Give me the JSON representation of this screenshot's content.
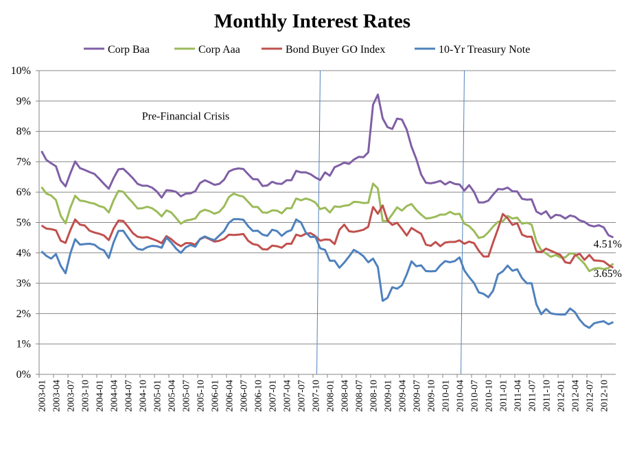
{
  "chart_data": {
    "type": "line",
    "title": "Monthly Interest Rates",
    "xlabel": "",
    "ylabel": "",
    "ylim": [
      0,
      10
    ],
    "yticks": [
      "0%",
      "1%",
      "2%",
      "3%",
      "4%",
      "5%",
      "6%",
      "7%",
      "8%",
      "9%",
      "10%"
    ],
    "grid": true,
    "legend_position": "top",
    "x_start": "2003-01",
    "x_end": "2012-12",
    "x_tick_labels": [
      "2003-01",
      "2003-04",
      "2003-07",
      "2003-10",
      "2004-01",
      "2004-04",
      "2004-07",
      "2004-10",
      "2005-01",
      "2005-04",
      "2005-07",
      "2005-10",
      "2006-01",
      "2006-04",
      "2006-07",
      "2006-10",
      "2007-01",
      "2007-04",
      "2007-07",
      "2007-10",
      "2008-01",
      "2008-04",
      "2008-07",
      "2008-10",
      "2009-01",
      "2009-04",
      "2009-07",
      "2009-10",
      "2010-01",
      "2010-04",
      "2010-07",
      "2010-10",
      "2011-01",
      "2011-04",
      "2011-07",
      "2011-10",
      "2012-01",
      "2012-04",
      "2012-07",
      "2012-10"
    ],
    "vertical_markers": [
      "2007-10",
      "2010-04"
    ],
    "annotations": [
      {
        "text": "Pre-Financial Crisis",
        "x": "2005-07",
        "y": 8.5
      }
    ],
    "end_labels": [
      "4.51%",
      "3.65%"
    ],
    "series": [
      {
        "name": "Corp Baa",
        "color": "#7F5FA5",
        "values": [
          7.35,
          7.06,
          6.95,
          6.85,
          6.38,
          6.19,
          6.62,
          7.01,
          6.79,
          6.73,
          6.66,
          6.6,
          6.44,
          6.27,
          6.11,
          6.46,
          6.75,
          6.77,
          6.62,
          6.46,
          6.27,
          6.21,
          6.21,
          6.15,
          6.02,
          5.82,
          6.06,
          6.05,
          6.01,
          5.86,
          5.95,
          5.96,
          6.03,
          6.3,
          6.39,
          6.32,
          6.24,
          6.27,
          6.41,
          6.68,
          6.75,
          6.78,
          6.76,
          6.59,
          6.43,
          6.42,
          6.2,
          6.22,
          6.34,
          6.28,
          6.27,
          6.39,
          6.39,
          6.7,
          6.65,
          6.65,
          6.59,
          6.48,
          6.4,
          6.65,
          6.54,
          6.82,
          6.89,
          6.97,
          6.93,
          7.07,
          7.16,
          7.15,
          7.31,
          8.88,
          9.21,
          8.43,
          8.14,
          8.08,
          8.42,
          8.39,
          8.06,
          7.5,
          7.09,
          6.58,
          6.31,
          6.29,
          6.32,
          6.37,
          6.25,
          6.34,
          6.27,
          6.25,
          6.05,
          6.23,
          6.01,
          5.66,
          5.66,
          5.72,
          5.92,
          6.1,
          6.09,
          6.15,
          6.03,
          6.02,
          5.78,
          5.75,
          5.76,
          5.36,
          5.27,
          5.37,
          5.14,
          5.25,
          5.23,
          5.13,
          5.23,
          5.19,
          5.07,
          5.02,
          4.91,
          4.87,
          4.91,
          4.84,
          4.58,
          4.51
        ]
      },
      {
        "name": "Corp Aaa",
        "color": "#9BBB59",
        "values": [
          6.17,
          5.95,
          5.89,
          5.74,
          5.22,
          4.97,
          5.49,
          5.88,
          5.72,
          5.7,
          5.65,
          5.62,
          5.54,
          5.5,
          5.33,
          5.73,
          6.04,
          6.01,
          5.82,
          5.65,
          5.46,
          5.47,
          5.52,
          5.47,
          5.36,
          5.2,
          5.4,
          5.33,
          5.15,
          4.96,
          5.06,
          5.09,
          5.13,
          5.35,
          5.42,
          5.37,
          5.29,
          5.35,
          5.53,
          5.84,
          5.95,
          5.89,
          5.85,
          5.68,
          5.51,
          5.51,
          5.33,
          5.32,
          5.4,
          5.39,
          5.3,
          5.47,
          5.47,
          5.79,
          5.73,
          5.79,
          5.74,
          5.66,
          5.44,
          5.49,
          5.33,
          5.53,
          5.51,
          5.55,
          5.57,
          5.68,
          5.67,
          5.64,
          5.65,
          6.28,
          6.12,
          5.05,
          5.05,
          5.27,
          5.5,
          5.39,
          5.54,
          5.61,
          5.41,
          5.26,
          5.13,
          5.15,
          5.19,
          5.26,
          5.26,
          5.35,
          5.27,
          5.29,
          4.96,
          4.88,
          4.72,
          4.49,
          4.53,
          4.68,
          4.87,
          5.02,
          5.04,
          5.22,
          5.13,
          5.16,
          4.96,
          4.99,
          4.93,
          4.37,
          4.09,
          3.98,
          3.87,
          3.93,
          3.85,
          3.85,
          3.99,
          3.96,
          3.8,
          3.64,
          3.4,
          3.48,
          3.5,
          3.47,
          3.5,
          3.65
        ]
      },
      {
        "name": "Bond Buyer GO Index",
        "color": "#C0504D",
        "values": [
          4.9,
          4.8,
          4.78,
          4.74,
          4.4,
          4.33,
          4.75,
          5.1,
          4.93,
          4.9,
          4.73,
          4.67,
          4.63,
          4.57,
          4.42,
          4.8,
          5.06,
          5.05,
          4.86,
          4.65,
          4.53,
          4.5,
          4.52,
          4.46,
          4.4,
          4.32,
          4.55,
          4.45,
          4.31,
          4.22,
          4.32,
          4.32,
          4.27,
          4.45,
          4.52,
          4.45,
          4.37,
          4.4,
          4.46,
          4.6,
          4.59,
          4.6,
          4.62,
          4.4,
          4.29,
          4.26,
          4.12,
          4.11,
          4.24,
          4.22,
          4.17,
          4.3,
          4.3,
          4.6,
          4.55,
          4.63,
          4.65,
          4.55,
          4.4,
          4.44,
          4.43,
          4.29,
          4.76,
          4.93,
          4.71,
          4.69,
          4.72,
          4.76,
          4.86,
          5.51,
          5.29,
          5.56,
          5.07,
          4.92,
          4.99,
          4.79,
          4.57,
          4.82,
          4.72,
          4.63,
          4.27,
          4.23,
          4.36,
          4.22,
          4.34,
          4.36,
          4.36,
          4.41,
          4.3,
          4.37,
          4.32,
          4.07,
          3.88,
          3.88,
          4.35,
          4.79,
          5.28,
          5.14,
          4.92,
          4.98,
          4.6,
          4.53,
          4.53,
          4.05,
          4.02,
          4.14,
          4.07,
          4.0,
          3.93,
          3.69,
          3.66,
          3.91,
          3.97,
          3.77,
          3.93,
          3.75,
          3.74,
          3.72,
          3.6,
          3.51
        ]
      },
      {
        "name": "10-Yr Treasury Note",
        "color": "#4F81BD",
        "values": [
          4.05,
          3.9,
          3.81,
          3.96,
          3.57,
          3.33,
          3.98,
          4.45,
          4.27,
          4.29,
          4.3,
          4.27,
          4.15,
          4.08,
          3.83,
          4.35,
          4.72,
          4.73,
          4.5,
          4.28,
          4.13,
          4.1,
          4.19,
          4.23,
          4.22,
          4.17,
          4.5,
          4.34,
          4.14,
          4.0,
          4.18,
          4.26,
          4.2,
          4.46,
          4.54,
          4.47,
          4.42,
          4.57,
          4.72,
          4.99,
          5.11,
          5.11,
          5.09,
          4.88,
          4.72,
          4.73,
          4.6,
          4.56,
          4.76,
          4.72,
          4.56,
          4.69,
          4.75,
          5.1,
          5.0,
          4.67,
          4.52,
          4.53,
          4.15,
          4.1,
          3.74,
          3.74,
          3.51,
          3.68,
          3.88,
          4.1,
          4.01,
          3.89,
          3.69,
          3.81,
          3.53,
          2.42,
          2.52,
          2.87,
          2.82,
          2.93,
          3.29,
          3.72,
          3.56,
          3.59,
          3.4,
          3.39,
          3.4,
          3.59,
          3.73,
          3.69,
          3.73,
          3.85,
          3.42,
          3.2,
          3.01,
          2.7,
          2.65,
          2.54,
          2.76,
          3.29,
          3.39,
          3.58,
          3.41,
          3.46,
          3.17,
          3.0,
          3.0,
          2.3,
          1.98,
          2.15,
          2.01,
          1.98,
          1.97,
          1.97,
          2.17,
          2.05,
          1.8,
          1.62,
          1.53,
          1.68,
          1.72,
          1.75,
          1.65,
          1.72
        ]
      }
    ]
  }
}
